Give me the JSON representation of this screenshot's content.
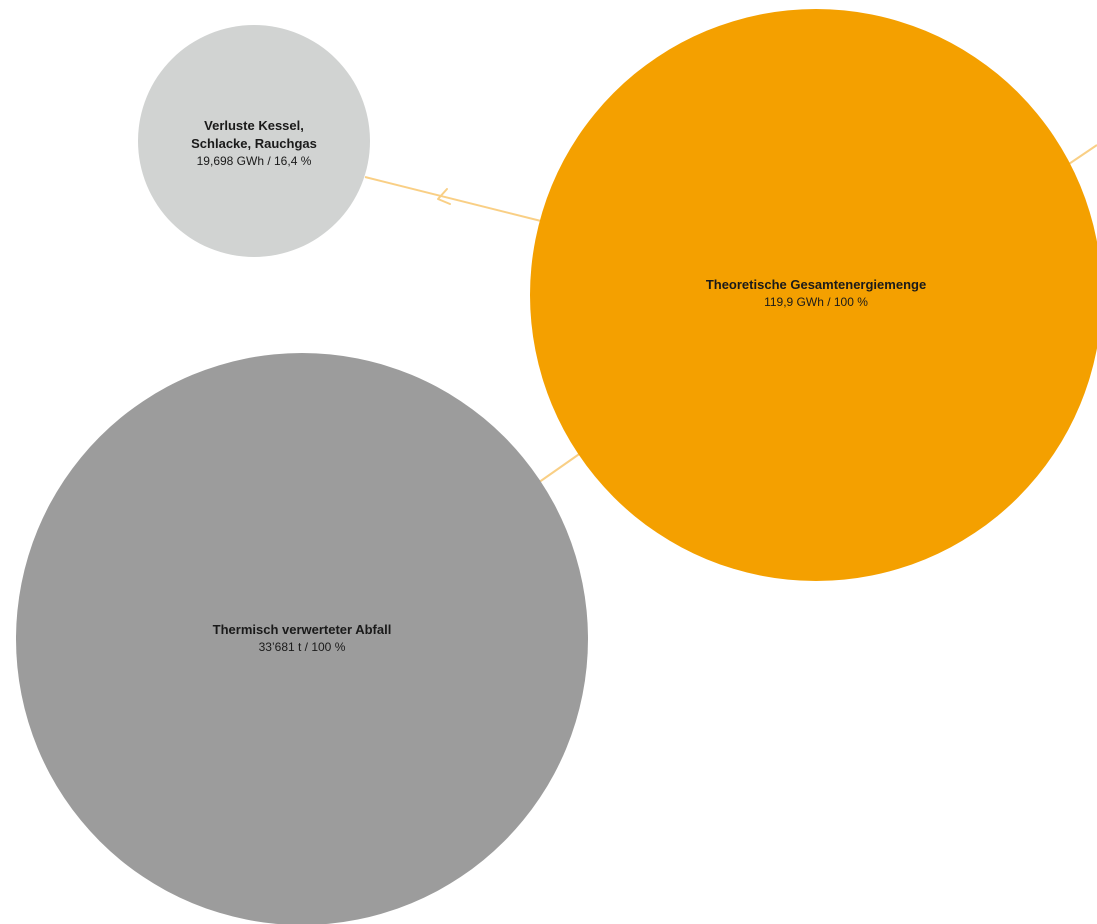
{
  "colors": {
    "accent": "#f4a000",
    "loss": "#d1d3d2",
    "waste": "#9c9c9c",
    "connector": "#f9cf85"
  },
  "nodes": {
    "total_energy": {
      "title": "Theoretische Gesamtenergiemenge",
      "value": "119,9 GWh / 100 %"
    },
    "boiler_losses": {
      "title_line1": "Verluste Kessel,",
      "title_line2": "Schlacke, Rauchgas",
      "value": "19,698 GWh / 16,4 %"
    },
    "thermal_waste": {
      "title": "Thermisch verwerteter Abfall",
      "value": "33’681 t / 100 %"
    }
  }
}
